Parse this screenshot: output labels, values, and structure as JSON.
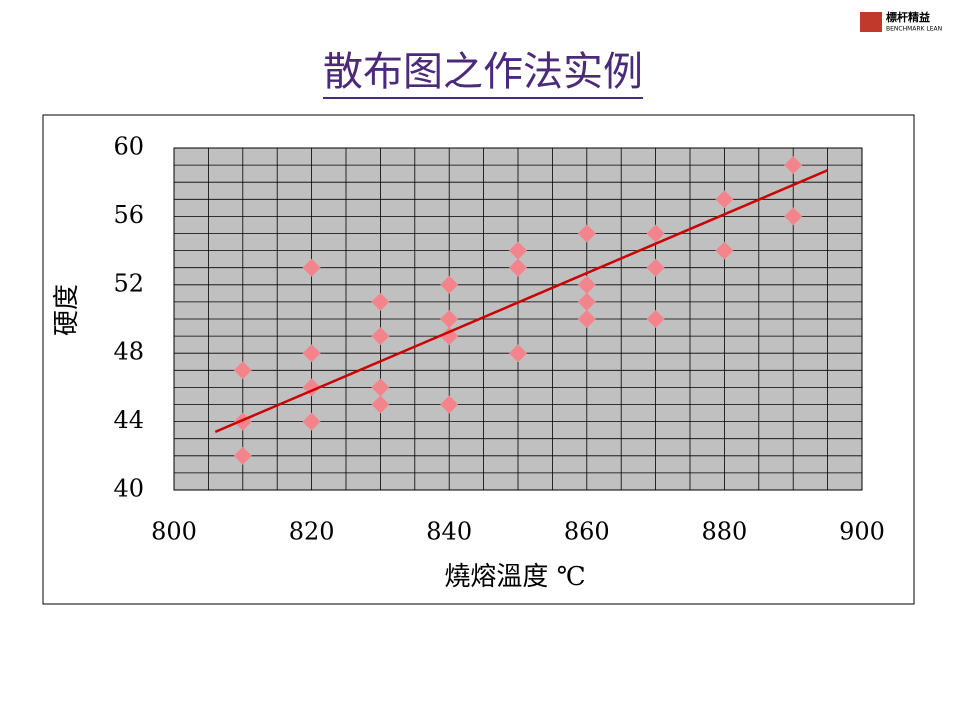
{
  "logo": {
    "name": "標杆精益",
    "subtitle": "BENCHMARK LEAN"
  },
  "chart_data": {
    "type": "scatter",
    "title": "散布图之作法实例",
    "x_label": "燒熔溫度 ℃",
    "y_label": "硬度",
    "series": [
      {
        "color": "#f4848c",
        "x": [
          810,
          810,
          810,
          820,
          820,
          820,
          820,
          830,
          830,
          830,
          830,
          840,
          840,
          840,
          840,
          850,
          850,
          850,
          860,
          860,
          860,
          860,
          870,
          870,
          870,
          880,
          880,
          890,
          890
        ],
        "values": [
          47,
          44,
          42,
          53,
          48,
          46,
          44,
          51,
          49,
          46,
          45,
          52,
          50,
          49,
          45,
          54,
          53,
          48,
          55,
          52,
          51,
          50,
          55,
          53,
          50,
          57,
          54,
          59,
          56
        ]
      }
    ],
    "trendline": {
      "color": "#cc0000",
      "x": [
        806,
        895
      ],
      "values": [
        43.4,
        58.7
      ]
    },
    "xlim": [
      800,
      900
    ],
    "xticks": [
      800,
      820,
      840,
      860,
      880,
      900
    ],
    "ylim": [
      40,
      60
    ],
    "yticks": [
      40,
      44,
      48,
      52,
      56,
      60
    ],
    "minor_xticks": [
      805,
      810,
      815,
      825,
      830,
      835,
      845,
      850,
      855,
      865,
      870,
      875,
      885,
      890,
      895
    ],
    "minor_yticks": [
      41,
      42,
      43,
      45,
      46,
      47,
      49,
      50,
      51,
      53,
      54,
      55,
      57,
      58,
      59
    ],
    "grid": true,
    "plot_background": "#c0c0c0"
  }
}
